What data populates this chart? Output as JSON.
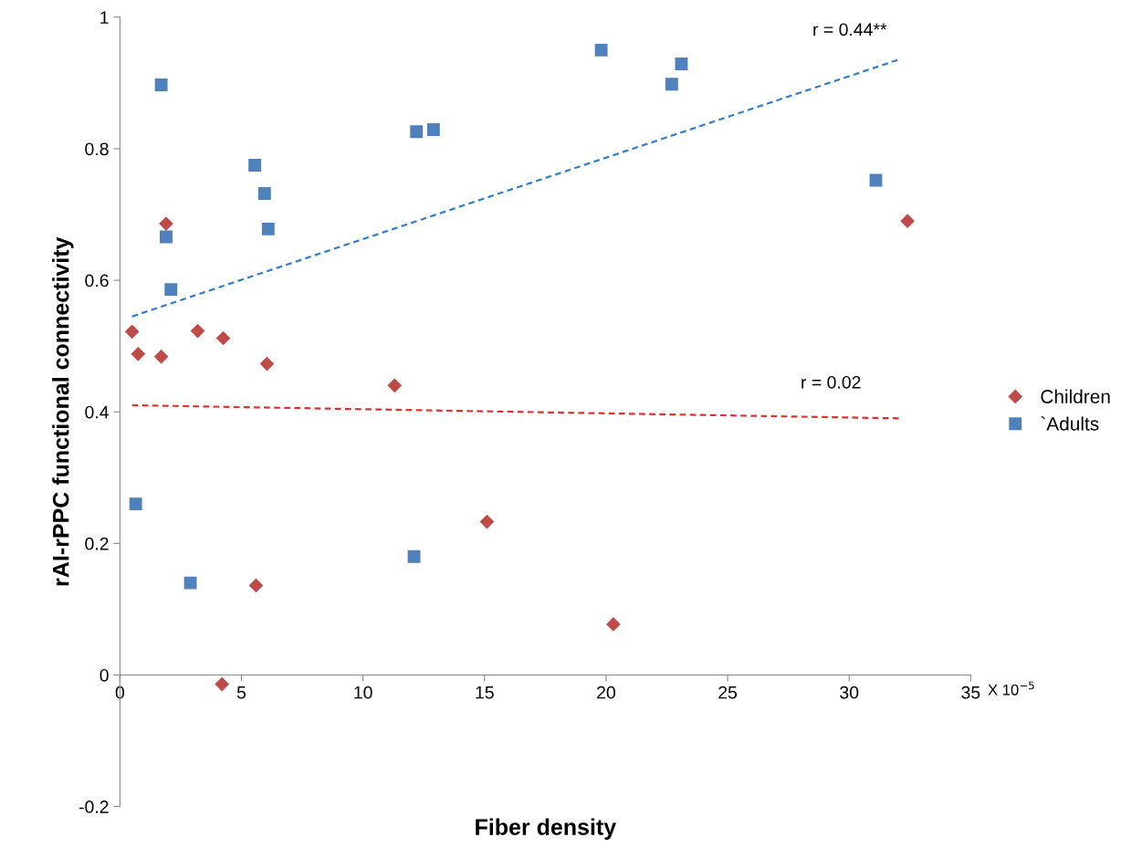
{
  "chart_data": {
    "type": "scatter",
    "xlabel": "Fiber density",
    "ylabel": "rAI-rPPC functional connectivity",
    "xlim": [
      0,
      35
    ],
    "xticks": [
      0,
      5,
      10,
      15,
      20,
      25,
      30,
      35
    ],
    "ylim": [
      -0.2,
      1
    ],
    "yticks": [
      -0.2,
      0,
      0.2,
      0.4,
      0.6,
      0.8,
      1
    ],
    "grid": false,
    "legend": "right",
    "series": [
      {
        "name": "Children",
        "color": "#be4b48",
        "marker": "diamond",
        "x": [
          0.5,
          0.75,
          1.7,
          1.9,
          3.2,
          4.25,
          6.05,
          11.3,
          15.1,
          5.6,
          4.2,
          20.3,
          32.4
        ],
        "values": [
          0.522,
          0.488,
          0.484,
          0.686,
          0.523,
          0.512,
          0.473,
          0.44,
          0.233,
          0.136,
          -0.014,
          0.077,
          0.69
        ]
      },
      {
        "name": "`Adults",
        "color": "#4f81bd",
        "marker": "square",
        "x": [
          1.7,
          1.9,
          2.1,
          0.65,
          2.9,
          5.55,
          5.95,
          6.1,
          12.2,
          12.9,
          19.8,
          22.7,
          23.1,
          31.1,
          12.1
        ],
        "values": [
          0.897,
          0.666,
          0.586,
          0.26,
          0.14,
          0.775,
          0.732,
          0.678,
          0.826,
          0.829,
          0.95,
          0.898,
          0.929,
          0.752,
          0.18
        ]
      },
      {
        "type": "line",
        "color": "#2f7fd0",
        "line_style": "dashed",
        "marker": "none",
        "x": [
          0.5,
          32
        ],
        "values": [
          0.545,
          0.935
        ]
      },
      {
        "type": "line",
        "color": "#e0302a",
        "line_style": "dashed",
        "marker": "none",
        "x": [
          0.5,
          32.2
        ],
        "values": [
          0.41,
          0.39
        ]
      }
    ],
    "annotations": [
      "r = 0.44**",
      "r = 0.02",
      "X 10$^{−5}$"
    ]
  }
}
